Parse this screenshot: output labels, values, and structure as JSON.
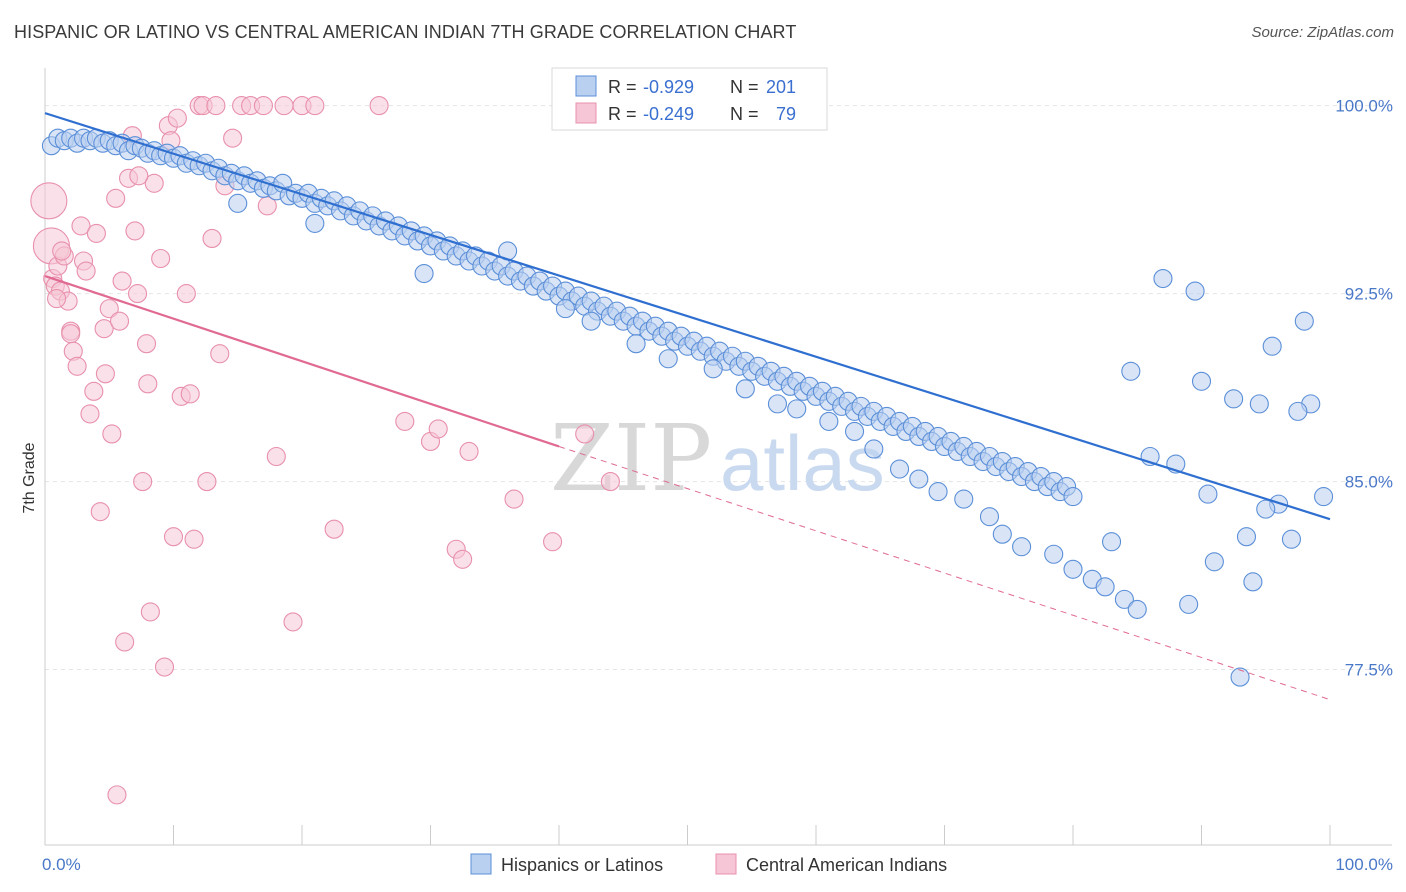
{
  "header": {
    "title": "HISPANIC OR LATINO VS CENTRAL AMERICAN INDIAN 7TH GRADE CORRELATION CHART",
    "source": "Source: ZipAtlas.com"
  },
  "colors": {
    "blue": "#5b8fd8",
    "blue_fill": "#b9d0f0",
    "blue_line": "#2f6fd0",
    "pink": "#e890ac",
    "pink_fill": "#f6c6d6",
    "pink_line": "#e06a92",
    "grid": "#e4e4e4",
    "tick_label": "#4a78c8"
  },
  "watermark": {
    "zip": "ZIP",
    "atlas": "atlas"
  },
  "chart_data": {
    "type": "scatter",
    "title": "HISPANIC OR LATINO VS CENTRAL AMERICAN INDIAN 7TH GRADE CORRELATION CHART",
    "xlabel": "",
    "ylabel": "7th Grade",
    "xlim": [
      0,
      100
    ],
    "ylim": [
      70.5,
      101.5
    ],
    "x_tick_labels": [
      "0.0%",
      "100.0%"
    ],
    "y_ticks": [
      100.0,
      92.5,
      85.0,
      77.5
    ],
    "y_tick_labels": [
      "100.0%",
      "92.5%",
      "85.0%",
      "77.5%"
    ],
    "grid": true,
    "legend": {
      "placement": "top-center",
      "entries": [
        {
          "r_label": "R =",
          "r_value": "-0.929",
          "n_label": "N =",
          "n_value": "201"
        },
        {
          "r_label": "R =",
          "r_value": "-0.249",
          "n_label": "N =",
          "n_value": "79"
        }
      ]
    },
    "bottom_legend": [
      "Hispanics or Latinos",
      "Central American Indians"
    ],
    "series": [
      {
        "name": "Hispanics or Latinos",
        "color": "#5b8fd8",
        "trend": {
          "x": [
            0,
            100
          ],
          "y": [
            99.7,
            83.5
          ],
          "style": "solid"
        },
        "points": [
          [
            0.5,
            98.4
          ],
          [
            1.0,
            98.7
          ],
          [
            1.5,
            98.6
          ],
          [
            2.0,
            98.7
          ],
          [
            2.5,
            98.5
          ],
          [
            3.0,
            98.7
          ],
          [
            3.5,
            98.6
          ],
          [
            4.0,
            98.7
          ],
          [
            4.5,
            98.5
          ],
          [
            5.0,
            98.6
          ],
          [
            5.5,
            98.4
          ],
          [
            6.0,
            98.5
          ],
          [
            6.5,
            98.2
          ],
          [
            7.0,
            98.4
          ],
          [
            7.5,
            98.3
          ],
          [
            8.0,
            98.1
          ],
          [
            8.5,
            98.2
          ],
          [
            9.0,
            98.0
          ],
          [
            9.5,
            98.1
          ],
          [
            10.0,
            97.9
          ],
          [
            10.5,
            98.0
          ],
          [
            11.0,
            97.7
          ],
          [
            11.5,
            97.8
          ],
          [
            12.0,
            97.6
          ],
          [
            12.5,
            97.7
          ],
          [
            13.0,
            97.4
          ],
          [
            13.5,
            97.5
          ],
          [
            14.0,
            97.2
          ],
          [
            14.5,
            97.3
          ],
          [
            15.0,
            97.0
          ],
          [
            15.5,
            97.2
          ],
          [
            16.0,
            96.9
          ],
          [
            16.5,
            97.0
          ],
          [
            17.0,
            96.7
          ],
          [
            17.5,
            96.8
          ],
          [
            18.0,
            96.6
          ],
          [
            18.5,
            96.9
          ],
          [
            19.0,
            96.4
          ],
          [
            19.5,
            96.5
          ],
          [
            20.0,
            96.3
          ],
          [
            20.5,
            96.5
          ],
          [
            21.0,
            96.1
          ],
          [
            21.5,
            96.3
          ],
          [
            22.0,
            96.0
          ],
          [
            22.5,
            96.2
          ],
          [
            23.0,
            95.8
          ],
          [
            23.5,
            96.0
          ],
          [
            24.0,
            95.6
          ],
          [
            24.5,
            95.8
          ],
          [
            25.0,
            95.4
          ],
          [
            25.5,
            95.6
          ],
          [
            26.0,
            95.2
          ],
          [
            26.5,
            95.4
          ],
          [
            27.0,
            95.0
          ],
          [
            27.5,
            95.2
          ],
          [
            28.0,
            94.8
          ],
          [
            28.5,
            95.0
          ],
          [
            29.0,
            94.6
          ],
          [
            29.5,
            94.8
          ],
          [
            30.0,
            94.4
          ],
          [
            30.5,
            94.6
          ],
          [
            31.0,
            94.2
          ],
          [
            31.5,
            94.4
          ],
          [
            32.0,
            94.0
          ],
          [
            32.5,
            94.2
          ],
          [
            33.0,
            93.8
          ],
          [
            33.5,
            94.0
          ],
          [
            34.0,
            93.6
          ],
          [
            34.5,
            93.8
          ],
          [
            35.0,
            93.4
          ],
          [
            35.5,
            93.6
          ],
          [
            36.0,
            93.2
          ],
          [
            36.5,
            93.4
          ],
          [
            37.0,
            93.0
          ],
          [
            37.5,
            93.2
          ],
          [
            38.0,
            92.8
          ],
          [
            38.5,
            93.0
          ],
          [
            39.0,
            92.6
          ],
          [
            39.5,
            92.8
          ],
          [
            40.0,
            92.4
          ],
          [
            40.5,
            92.6
          ],
          [
            41.0,
            92.2
          ],
          [
            41.5,
            92.4
          ],
          [
            42.0,
            92.0
          ],
          [
            42.5,
            92.2
          ],
          [
            43.0,
            91.8
          ],
          [
            43.5,
            92.0
          ],
          [
            44.0,
            91.6
          ],
          [
            44.5,
            91.8
          ],
          [
            45.0,
            91.4
          ],
          [
            45.5,
            91.6
          ],
          [
            46.0,
            91.2
          ],
          [
            46.5,
            91.4
          ],
          [
            47.0,
            91.0
          ],
          [
            47.5,
            91.2
          ],
          [
            48.0,
            90.8
          ],
          [
            48.5,
            91.0
          ],
          [
            49.0,
            90.6
          ],
          [
            49.5,
            90.8
          ],
          [
            50.0,
            90.4
          ],
          [
            50.5,
            90.6
          ],
          [
            51.0,
            90.2
          ],
          [
            51.5,
            90.4
          ],
          [
            52.0,
            90.0
          ],
          [
            52.5,
            90.2
          ],
          [
            53.0,
            89.8
          ],
          [
            53.5,
            90.0
          ],
          [
            54.0,
            89.6
          ],
          [
            54.5,
            89.8
          ],
          [
            55.0,
            89.4
          ],
          [
            55.5,
            89.6
          ],
          [
            56.0,
            89.2
          ],
          [
            56.5,
            89.4
          ],
          [
            57.0,
            89.0
          ],
          [
            57.5,
            89.2
          ],
          [
            58.0,
            88.8
          ],
          [
            58.5,
            89.0
          ],
          [
            59.0,
            88.6
          ],
          [
            59.5,
            88.8
          ],
          [
            60.0,
            88.4
          ],
          [
            60.5,
            88.6
          ],
          [
            61.0,
            88.2
          ],
          [
            61.5,
            88.4
          ],
          [
            62.0,
            88.0
          ],
          [
            62.5,
            88.2
          ],
          [
            63.0,
            87.8
          ],
          [
            63.5,
            88.0
          ],
          [
            64.0,
            87.6
          ],
          [
            64.5,
            87.8
          ],
          [
            65.0,
            87.4
          ],
          [
            65.5,
            87.6
          ],
          [
            66.0,
            87.2
          ],
          [
            66.5,
            87.4
          ],
          [
            67.0,
            87.0
          ],
          [
            67.5,
            87.2
          ],
          [
            68.0,
            86.8
          ],
          [
            68.5,
            87.0
          ],
          [
            69.0,
            86.6
          ],
          [
            69.5,
            86.8
          ],
          [
            70.0,
            86.4
          ],
          [
            70.5,
            86.6
          ],
          [
            71.0,
            86.2
          ],
          [
            71.5,
            86.4
          ],
          [
            72.0,
            86.0
          ],
          [
            72.5,
            86.2
          ],
          [
            73.0,
            85.8
          ],
          [
            73.5,
            86.0
          ],
          [
            74.0,
            85.6
          ],
          [
            74.5,
            85.8
          ],
          [
            75.0,
            85.4
          ],
          [
            75.5,
            85.6
          ],
          [
            76.0,
            85.2
          ],
          [
            76.5,
            85.4
          ],
          [
            77.0,
            85.0
          ],
          [
            77.5,
            85.2
          ],
          [
            78.0,
            84.8
          ],
          [
            78.5,
            85.0
          ],
          [
            79.0,
            84.6
          ],
          [
            79.5,
            84.8
          ],
          [
            80.0,
            84.4
          ],
          [
            15.0,
            96.1
          ],
          [
            21.0,
            95.3
          ],
          [
            29.5,
            93.3
          ],
          [
            36.0,
            94.2
          ],
          [
            40.5,
            91.9
          ],
          [
            42.5,
            91.4
          ],
          [
            46.0,
            90.5
          ],
          [
            48.5,
            89.9
          ],
          [
            52.0,
            89.5
          ],
          [
            54.5,
            88.7
          ],
          [
            57.0,
            88.1
          ],
          [
            58.5,
            87.9
          ],
          [
            61.0,
            87.4
          ],
          [
            63.0,
            87.0
          ],
          [
            64.5,
            86.3
          ],
          [
            66.5,
            85.5
          ],
          [
            68.0,
            85.1
          ],
          [
            69.5,
            84.6
          ],
          [
            71.5,
            84.3
          ],
          [
            73.5,
            83.6
          ],
          [
            74.5,
            82.9
          ],
          [
            76.0,
            82.4
          ],
          [
            78.5,
            82.1
          ],
          [
            80.0,
            81.5
          ],
          [
            81.5,
            81.1
          ],
          [
            82.5,
            80.8
          ],
          [
            84.0,
            80.3
          ],
          [
            85.0,
            79.9
          ],
          [
            89.5,
            92.6
          ],
          [
            87.0,
            93.1
          ],
          [
            90.0,
            89.0
          ],
          [
            92.5,
            88.3
          ],
          [
            94.5,
            88.1
          ],
          [
            95.5,
            90.4
          ],
          [
            98.0,
            91.4
          ],
          [
            98.5,
            88.1
          ],
          [
            99.5,
            84.4
          ],
          [
            97.5,
            87.8
          ],
          [
            96.0,
            84.1
          ],
          [
            93.5,
            82.8
          ],
          [
            91.0,
            81.8
          ],
          [
            89.0,
            80.1
          ],
          [
            95.0,
            83.9
          ],
          [
            97.0,
            82.7
          ],
          [
            94.0,
            81.0
          ],
          [
            93.0,
            77.2
          ],
          [
            90.5,
            84.5
          ],
          [
            88.0,
            85.7
          ],
          [
            86.0,
            86.0
          ],
          [
            84.5,
            89.4
          ],
          [
            83.0,
            82.6
          ]
        ]
      },
      {
        "name": "Central American Indians",
        "color": "#e890ac",
        "trend": {
          "x": [
            0,
            40
          ],
          "y": [
            93.2,
            86.4
          ],
          "style": "solid",
          "extension": {
            "x": [
              40,
              100
            ],
            "y": [
              86.4,
              76.3
            ],
            "style": "dashed"
          }
        },
        "points": [
          [
            0.3,
            96.2
          ],
          [
            0.5,
            94.4
          ],
          [
            0.6,
            93.1
          ],
          [
            0.8,
            92.8
          ],
          [
            1.0,
            93.6
          ],
          [
            1.2,
            92.6
          ],
          [
            1.5,
            94.0
          ],
          [
            1.8,
            92.2
          ],
          [
            2.0,
            91.0
          ],
          [
            2.2,
            90.2
          ],
          [
            2.5,
            89.6
          ],
          [
            2.8,
            95.2
          ],
          [
            3.0,
            93.8
          ],
          [
            3.2,
            93.4
          ],
          [
            3.5,
            87.7
          ],
          [
            3.8,
            88.6
          ],
          [
            4.0,
            94.9
          ],
          [
            4.3,
            83.8
          ],
          [
            4.6,
            91.1
          ],
          [
            5.0,
            91.9
          ],
          [
            5.2,
            86.9
          ],
          [
            5.5,
            96.3
          ],
          [
            5.8,
            91.4
          ],
          [
            6.2,
            78.6
          ],
          [
            6.5,
            97.1
          ],
          [
            7.0,
            95.0
          ],
          [
            7.2,
            92.5
          ],
          [
            7.6,
            85.0
          ],
          [
            7.9,
            90.5
          ],
          [
            8.2,
            79.8
          ],
          [
            8.5,
            96.9
          ],
          [
            9.0,
            93.9
          ],
          [
            9.3,
            77.6
          ],
          [
            9.6,
            99.2
          ],
          [
            10.0,
            82.8
          ],
          [
            10.3,
            99.5
          ],
          [
            10.6,
            88.4
          ],
          [
            11.0,
            92.5
          ],
          [
            11.6,
            82.7
          ],
          [
            12.0,
            100.0
          ],
          [
            12.3,
            100.0
          ],
          [
            12.6,
            85.0
          ],
          [
            13.0,
            94.7
          ],
          [
            13.3,
            100.0
          ],
          [
            14.0,
            96.8
          ],
          [
            14.6,
            98.7
          ],
          [
            15.3,
            100.0
          ],
          [
            16.0,
            100.0
          ],
          [
            13.6,
            90.1
          ],
          [
            17.0,
            100.0
          ],
          [
            17.3,
            96.0
          ],
          [
            18.0,
            86.0
          ],
          [
            18.6,
            100.0
          ],
          [
            19.3,
            79.4
          ],
          [
            20.0,
            100.0
          ],
          [
            21.0,
            100.0
          ],
          [
            22.5,
            83.1
          ],
          [
            26.0,
            100.0
          ],
          [
            28.0,
            87.4
          ],
          [
            30.0,
            86.6
          ],
          [
            30.6,
            87.1
          ],
          [
            32.0,
            82.3
          ],
          [
            32.5,
            81.9
          ],
          [
            33.0,
            86.2
          ],
          [
            36.5,
            84.3
          ],
          [
            39.5,
            82.6
          ],
          [
            42.0,
            86.9
          ],
          [
            44.0,
            85.0
          ],
          [
            5.6,
            72.5
          ],
          [
            6.8,
            98.8
          ],
          [
            7.3,
            97.2
          ],
          [
            8.0,
            88.9
          ],
          [
            9.8,
            98.6
          ],
          [
            2.0,
            90.9
          ],
          [
            1.3,
            94.2
          ],
          [
            0.9,
            92.3
          ],
          [
            11.3,
            88.5
          ],
          [
            4.7,
            89.3
          ],
          [
            6.0,
            93.0
          ]
        ]
      }
    ]
  }
}
